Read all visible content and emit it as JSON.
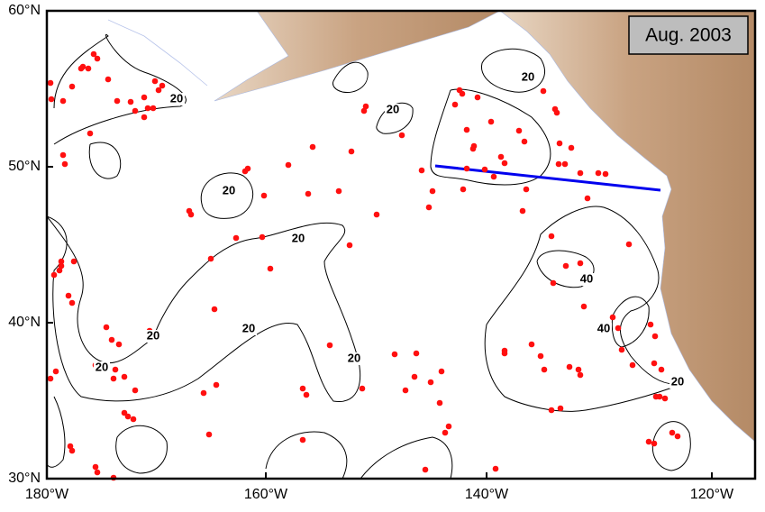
{
  "map": {
    "label": "Aug. 2003",
    "lon_ticks": [
      "180°W",
      "160°W",
      "140°W",
      "120°W"
    ],
    "lat_ticks": [
      "60°N",
      "50°N",
      "40°N",
      "30°N"
    ],
    "contour_labels": [
      "20",
      "20",
      "20",
      "20",
      "20",
      "20",
      "20",
      "20",
      "20",
      "40",
      "40",
      "20"
    ]
  }
}
